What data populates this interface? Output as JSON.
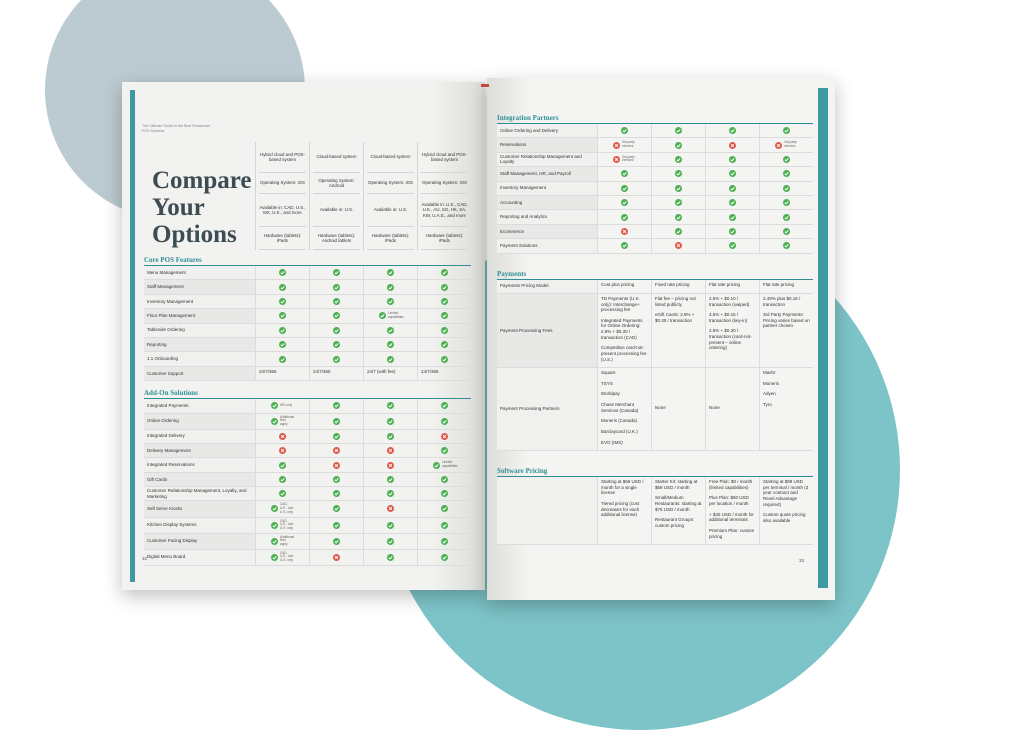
{
  "left_page": {
    "header": "The Ultimate Guide to the Best Restaurant POS Systems",
    "title": "Compare Your Options",
    "columns": [
      {
        "type": "Hybrid cloud and POS-based system",
        "os": "Operating System: iOS",
        "available": "Available in: CAD, U.S., MX, U.K., and more",
        "hardware": "Hardware (tablets): iPads"
      },
      {
        "type": "Cloud-based system",
        "os": "Operating System: Android",
        "available": "Available in: U.S.",
        "hardware": "Hardware (tablets): Android tablets"
      },
      {
        "type": "Cloud-based system",
        "os": "Operating System: iOS",
        "available": "Available in: U.S.",
        "hardware": "Hardware (tablets): iPads"
      },
      {
        "type": "Hybrid cloud and POS-based system",
        "os": "Operating System: iOS",
        "available": "Available in: U.S., CAD, U.K., AU, SG, HK, SA, KW, U.A.E., and more",
        "hardware": "Hardware (tablets): iPads"
      }
    ],
    "sections": [
      {
        "title": "Core POS Features",
        "rows": [
          {
            "label": "Menu Management",
            "cells": [
              {
                "status": "check"
              },
              {
                "status": "check"
              },
              {
                "status": "check"
              },
              {
                "status": "check"
              }
            ]
          },
          {
            "label": "Staff Management",
            "cells": [
              {
                "status": "check"
              },
              {
                "status": "check"
              },
              {
                "status": "check"
              },
              {
                "status": "check"
              }
            ]
          },
          {
            "label": "Inventory Management",
            "cells": [
              {
                "status": "check"
              },
              {
                "status": "check"
              },
              {
                "status": "check"
              },
              {
                "status": "check"
              }
            ]
          },
          {
            "label": "Floor Plan Management",
            "cells": [
              {
                "status": "check"
              },
              {
                "status": "check"
              },
              {
                "status": "check",
                "note": "Limited capabilities"
              },
              {
                "status": "check"
              }
            ]
          },
          {
            "label": "Tableside Ordering",
            "cells": [
              {
                "status": "check"
              },
              {
                "status": "check"
              },
              {
                "status": "check"
              },
              {
                "status": "check"
              }
            ]
          },
          {
            "label": "Reporting",
            "cells": [
              {
                "status": "check"
              },
              {
                "status": "check"
              },
              {
                "status": "check"
              },
              {
                "status": "check"
              }
            ]
          },
          {
            "label": "1:1 Onboarding",
            "cells": [
              {
                "status": "check"
              },
              {
                "status": "check"
              },
              {
                "status": "check"
              },
              {
                "status": "check"
              }
            ]
          },
          {
            "label": "Customer Support",
            "cells": [
              {
                "text": "24/7/365"
              },
              {
                "text": "24/7/365"
              },
              {
                "text": "24/7 (with fee)"
              },
              {
                "text": "24/7/365"
              }
            ]
          }
        ]
      },
      {
        "title": "Add-On Solutions",
        "rows": [
          {
            "label": "Integrated Payments",
            "cells": [
              {
                "status": "check",
                "note": "iOS only"
              },
              {
                "status": "check"
              },
              {
                "status": "check"
              },
              {
                "status": "check"
              }
            ]
          },
          {
            "label": "Online Ordering",
            "cells": [
              {
                "status": "check",
                "note": "Additional fees apply"
              },
              {
                "status": "check"
              },
              {
                "status": "check"
              },
              {
                "status": "check"
              }
            ]
          },
          {
            "label": "Integrated Delivery",
            "cells": [
              {
                "status": "x"
              },
              {
                "status": "check"
              },
              {
                "status": "check"
              },
              {
                "status": "x"
              }
            ]
          },
          {
            "label": "Delivery Management",
            "cells": [
              {
                "status": "x"
              },
              {
                "status": "x"
              },
              {
                "status": "x"
              },
              {
                "status": "check"
              }
            ]
          },
          {
            "label": "Integrated Reservations",
            "cells": [
              {
                "status": "check"
              },
              {
                "status": "x"
              },
              {
                "status": "x"
              },
              {
                "status": "check",
                "note": "Limited capabilities"
              }
            ]
          },
          {
            "label": "Gift Cards",
            "cells": [
              {
                "status": "check"
              },
              {
                "status": "check"
              },
              {
                "status": "check"
              },
              {
                "status": "check"
              }
            ]
          },
          {
            "label": "Customer Relationship Management, Loyalty, and Marketing",
            "cells": [
              {
                "status": "check"
              },
              {
                "status": "check"
              },
              {
                "status": "check"
              },
              {
                "status": "check"
              }
            ]
          },
          {
            "label": "Self Serve Kiosks",
            "cells": [
              {
                "status": "check",
                "note": "CAD, U.K., and U.S. only"
              },
              {
                "status": "check"
              },
              {
                "status": "x"
              },
              {
                "status": "check"
              }
            ]
          },
          {
            "label": "Kitchen Display Systems",
            "cells": [
              {
                "status": "check",
                "note": "CAD, U.K., and U.S. only"
              },
              {
                "status": "check"
              },
              {
                "status": "check"
              },
              {
                "status": "check"
              }
            ]
          },
          {
            "label": "Customer Facing Display",
            "cells": [
              {
                "status": "check",
                "note": "Additional fees apply"
              },
              {
                "status": "check"
              },
              {
                "status": "check"
              },
              {
                "status": "check"
              }
            ]
          },
          {
            "label": "Digital Menu Board",
            "cells": [
              {
                "status": "check",
                "note": "CAD, U.K., and U.S. only"
              },
              {
                "status": "x"
              },
              {
                "status": "check"
              },
              {
                "status": "check"
              }
            ]
          }
        ]
      }
    ],
    "page_number": "32"
  },
  "right_page": {
    "sections": [
      {
        "title": "Integration Partners",
        "rows": [
          {
            "label": "Online Ordering and Delivery",
            "cells": [
              {
                "status": "check"
              },
              {
                "status": "check"
              },
              {
                "status": "check"
              },
              {
                "status": "check"
              }
            ]
          },
          {
            "label": "Reservations",
            "cells": [
              {
                "status": "x",
                "note": "3rd party vendors"
              },
              {
                "status": "check"
              },
              {
                "status": "x"
              },
              {
                "status": "x",
                "note": "3rd party vendors"
              }
            ]
          },
          {
            "label": "Customer Relationship Management and Loyalty",
            "cells": [
              {
                "status": "x",
                "note": "3rd party vendors"
              },
              {
                "status": "check"
              },
              {
                "status": "check"
              },
              {
                "status": "check"
              }
            ]
          },
          {
            "label": "Staff Management, HR, and Payroll",
            "cells": [
              {
                "status": "check"
              },
              {
                "status": "check"
              },
              {
                "status": "check"
              },
              {
                "status": "check"
              }
            ]
          },
          {
            "label": "Inventory Management",
            "cells": [
              {
                "status": "check"
              },
              {
                "status": "check"
              },
              {
                "status": "check"
              },
              {
                "status": "check"
              }
            ]
          },
          {
            "label": "Accounting",
            "cells": [
              {
                "status": "check"
              },
              {
                "status": "check"
              },
              {
                "status": "check"
              },
              {
                "status": "check"
              }
            ]
          },
          {
            "label": "Reporting and Analytics",
            "cells": [
              {
                "status": "check"
              },
              {
                "status": "check"
              },
              {
                "status": "check"
              },
              {
                "status": "check"
              }
            ]
          },
          {
            "label": "Ecommerce",
            "cells": [
              {
                "status": "x"
              },
              {
                "status": "check"
              },
              {
                "status": "check"
              },
              {
                "status": "check"
              }
            ]
          },
          {
            "label": "Payment Solutions",
            "cells": [
              {
                "status": "check"
              },
              {
                "status": "x"
              },
              {
                "status": "check"
              },
              {
                "status": "check"
              }
            ]
          }
        ]
      },
      {
        "title": "Payments",
        "rows": [
          {
            "label": "Payments Pricing Model",
            "cells": [
              {
                "text": "Cost plus pricing"
              },
              {
                "text": "Fixed rate pricing"
              },
              {
                "text": "Flat rate pricing"
              },
              {
                "text": "Flat rate pricing"
              }
            ]
          },
          {
            "label": "Payment Processing Fees",
            "cells": [
              {
                "paragraphs": [
                  "TD Payments (U.S. only): Interchange+ processing fee",
                  "Integrated Payments for Online Ordering: 2.9% + $0.30 / transaction (CAD)",
                  "Competitive card-not-present processing fee (U.S.)"
                ]
              },
              {
                "paragraphs": [
                  "Flat fee – pricing not listed publicly",
                  "eGift Cards: 2.9% + $0.30 / transaction"
                ]
              },
              {
                "paragraphs": [
                  "2.6% + $0.10 / transaction (swiped)",
                  "3.5% + $0.15 / transaction (key-in)",
                  "2.9% + $0.30 / transaction (card-not-present – online ordering)"
                ]
              },
              {
                "paragraphs": [
                  "2.49% plus $0.15 / transaction",
                  "3rd Party Payments: Pricing varies based on partner chosen"
                ]
              }
            ]
          },
          {
            "label": "Payment Processing Partners",
            "cells": [
              {
                "paragraphs": [
                  "Square",
                  "TSYS",
                  "Worldpay",
                  "Chase Merchant Services (Canada)",
                  "Moneris (Canada)",
                  "Barclaycard (U.K.)",
                  "EVO (IMS)"
                ]
              },
              {
                "text": "None"
              },
              {
                "text": "None"
              },
              {
                "paragraphs": [
                  "Mashr",
                  "Moneris",
                  "Adyen",
                  "Tyro"
                ]
              }
            ]
          }
        ]
      },
      {
        "title": "Software Pricing",
        "rows": [
          {
            "label": "",
            "cells": [
              {
                "paragraphs": [
                  "Starting at $69 USD / month for a single license",
                  "Tiered pricing (cost decreases for each additional license)"
                ]
              },
              {
                "paragraphs": [
                  "Starter Kit: starting at $69 USD / month",
                  "Small/Medium Restaurants: starting at $75 USD / month",
                  "Restaurant Groups: custom pricing"
                ]
              },
              {
                "paragraphs": [
                  "Free Plan: $0 / month (limited capabilities)",
                  "Plus Plan: $60 USD per location / month",
                  "+ $40 USD / month for additional terminals",
                  "Premium Plan: custom pricing"
                ]
              },
              {
                "paragraphs": [
                  "Starting at $99 USD per terminal / month (3 year contract and Revel Advantage required)",
                  "Custom quote pricing also available"
                ]
              }
            ]
          }
        ]
      }
    ],
    "page_number": "33"
  }
}
